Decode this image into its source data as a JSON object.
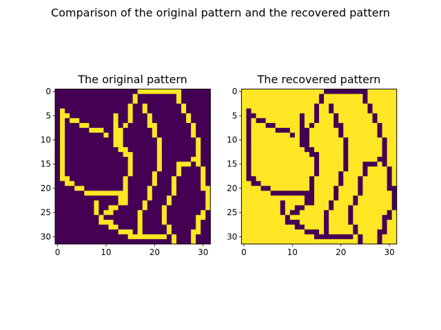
{
  "figure": {
    "suptitle": "Comparison of the original pattern and the recovered pattern"
  },
  "colors": {
    "low": "#440154",
    "high": "#fde725",
    "axes": "#000000",
    "background": "#ffffff"
  },
  "chart_data": [
    {
      "type": "heatmap",
      "title": "The original pattern",
      "xlabel": "",
      "ylabel": "",
      "xlim": [
        -0.5,
        31.5
      ],
      "ylim": [
        31.5,
        -0.5
      ],
      "xticks": [
        0,
        10,
        20,
        30
      ],
      "yticks": [
        0,
        5,
        10,
        15,
        20,
        25,
        30
      ],
      "grid": false,
      "colormap": "viridis",
      "value_range": [
        0,
        1
      ],
      "rows": [
        "00000000000000000111111111000000",
        "00000000000000001000000001000000",
        "00000000000000001000000001000000",
        "00000000000000010010000000100000",
        "01000000000000010010000000100000",
        "01100000000010010001000000010000",
        "01011000000010010001000000010000",
        "01000110000010100001100000001000",
        "01000001110011000000100000001000",
        "01000000001011000000100000001000",
        "01000000000011000000010000000100",
        "01000000000011000000010000000100",
        "01000000000001100000010000000100",
        "01000000000000110000010000000100",
        "01000000000000010000010000001100",
        "01000000000000010000010001110100",
        "01000000000000010000010001000010",
        "01000000000000010000100001000010",
        "01100000000000100000100010000010",
        "00110000000000100000100010000010",
        "00001100000000100001000010000011",
        "00000011111111100001000010000001",
        "00000000000001100001000100000001",
        "00000000100001100010000100000001",
        "00000000100110000010001000000001",
        "00000000101100000100001000000010",
        "00000000010000000100001000000110",
        "00000000011100000100001000000100",
        "00000000000110000100000100000100",
        "00000000000001110100000100001100",
        "00000000000000011111111010001000",
        "00000000000000000000000010001000"
      ]
    },
    {
      "type": "heatmap",
      "title": "The recovered pattern",
      "xlabel": "",
      "ylabel": "",
      "xlim": [
        -0.5,
        31.5
      ],
      "ylim": [
        31.5,
        -0.5
      ],
      "xticks": [
        0,
        10,
        20,
        30
      ],
      "yticks": [
        0,
        5,
        10,
        15,
        20,
        25,
        30
      ],
      "grid": false,
      "colormap": "viridis",
      "value_range": [
        0,
        1
      ],
      "rows": [
        "11111111111111111000000000111111",
        "11111111111111110111111110111111",
        "11111111111111110111111110111111",
        "11111111111111101101111111011111",
        "10111111111111101101111111011111",
        "10011111111101101110111111101111",
        "10100111111101101110111111101111",
        "10111001111101011110011111110111",
        "10111110001100111111011111110111",
        "10111111110100111111011111110111",
        "10111111111100111111101111111011",
        "10111111111100111111101111111011",
        "10111111111110011111101111111011",
        "10111111111111001111101111111011",
        "10111111111111101111101111110011",
        "10111111111111101111101110001011",
        "10111111111111101111101110111101",
        "10111111111111101111011110111101",
        "10011111111111011111011101111101",
        "11001111111111011111011101111101",
        "11110011111111011110111101111100",
        "11111100000000011110111101111110",
        "11111111111110011110111011111110",
        "11111111011110011101111011111110",
        "11111111011001111101110111111110",
        "11111111010011111011110111111101",
        "11111111101111111011110111111001",
        "11111111100011111011110111111011",
        "11111111111001111011111011111011",
        "11111111111110001011111011110011",
        "11111111111111100000000101110111",
        "11111111111111111111111101110111"
      ]
    }
  ]
}
